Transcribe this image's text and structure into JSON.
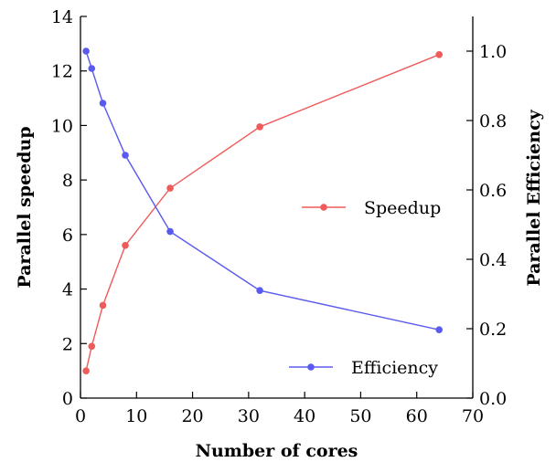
{
  "chart_data": {
    "type": "line",
    "title": "",
    "xlabel": "Number of cores",
    "ylabel_left": "Parallel speedup",
    "ylabel_right": "Parallel Efficiency",
    "xlim": [
      0,
      70
    ],
    "ylim_left": [
      0,
      14
    ],
    "ylim_right": [
      0.0,
      1.1
    ],
    "x_ticks": [
      0,
      10,
      20,
      30,
      40,
      50,
      60,
      70
    ],
    "y_left_ticks": [
      0,
      2,
      4,
      6,
      8,
      10,
      12,
      14
    ],
    "y_right_ticks": [
      0.0,
      0.2,
      0.4,
      0.6,
      0.8,
      1.0
    ],
    "y_right_tick_labels": [
      "0.0",
      "0.2",
      "0.4",
      "0.6",
      "0.8",
      "1.0"
    ],
    "grid": false,
    "series": [
      {
        "name": "Speedup",
        "axis": "left",
        "color": "#f05a5a",
        "x": [
          1,
          2,
          4,
          8,
          16,
          32,
          64
        ],
        "values": [
          1.0,
          1.9,
          3.4,
          5.6,
          7.7,
          9.95,
          12.6
        ],
        "legend_position": "center-right"
      },
      {
        "name": "Efficiency",
        "axis": "right",
        "color": "#5a5af0",
        "x": [
          1,
          2,
          4,
          8,
          16,
          32,
          64
        ],
        "values": [
          1.0,
          0.95,
          0.85,
          0.7,
          0.48,
          0.31,
          0.197
        ],
        "legend_position": "bottom-right"
      }
    ]
  }
}
